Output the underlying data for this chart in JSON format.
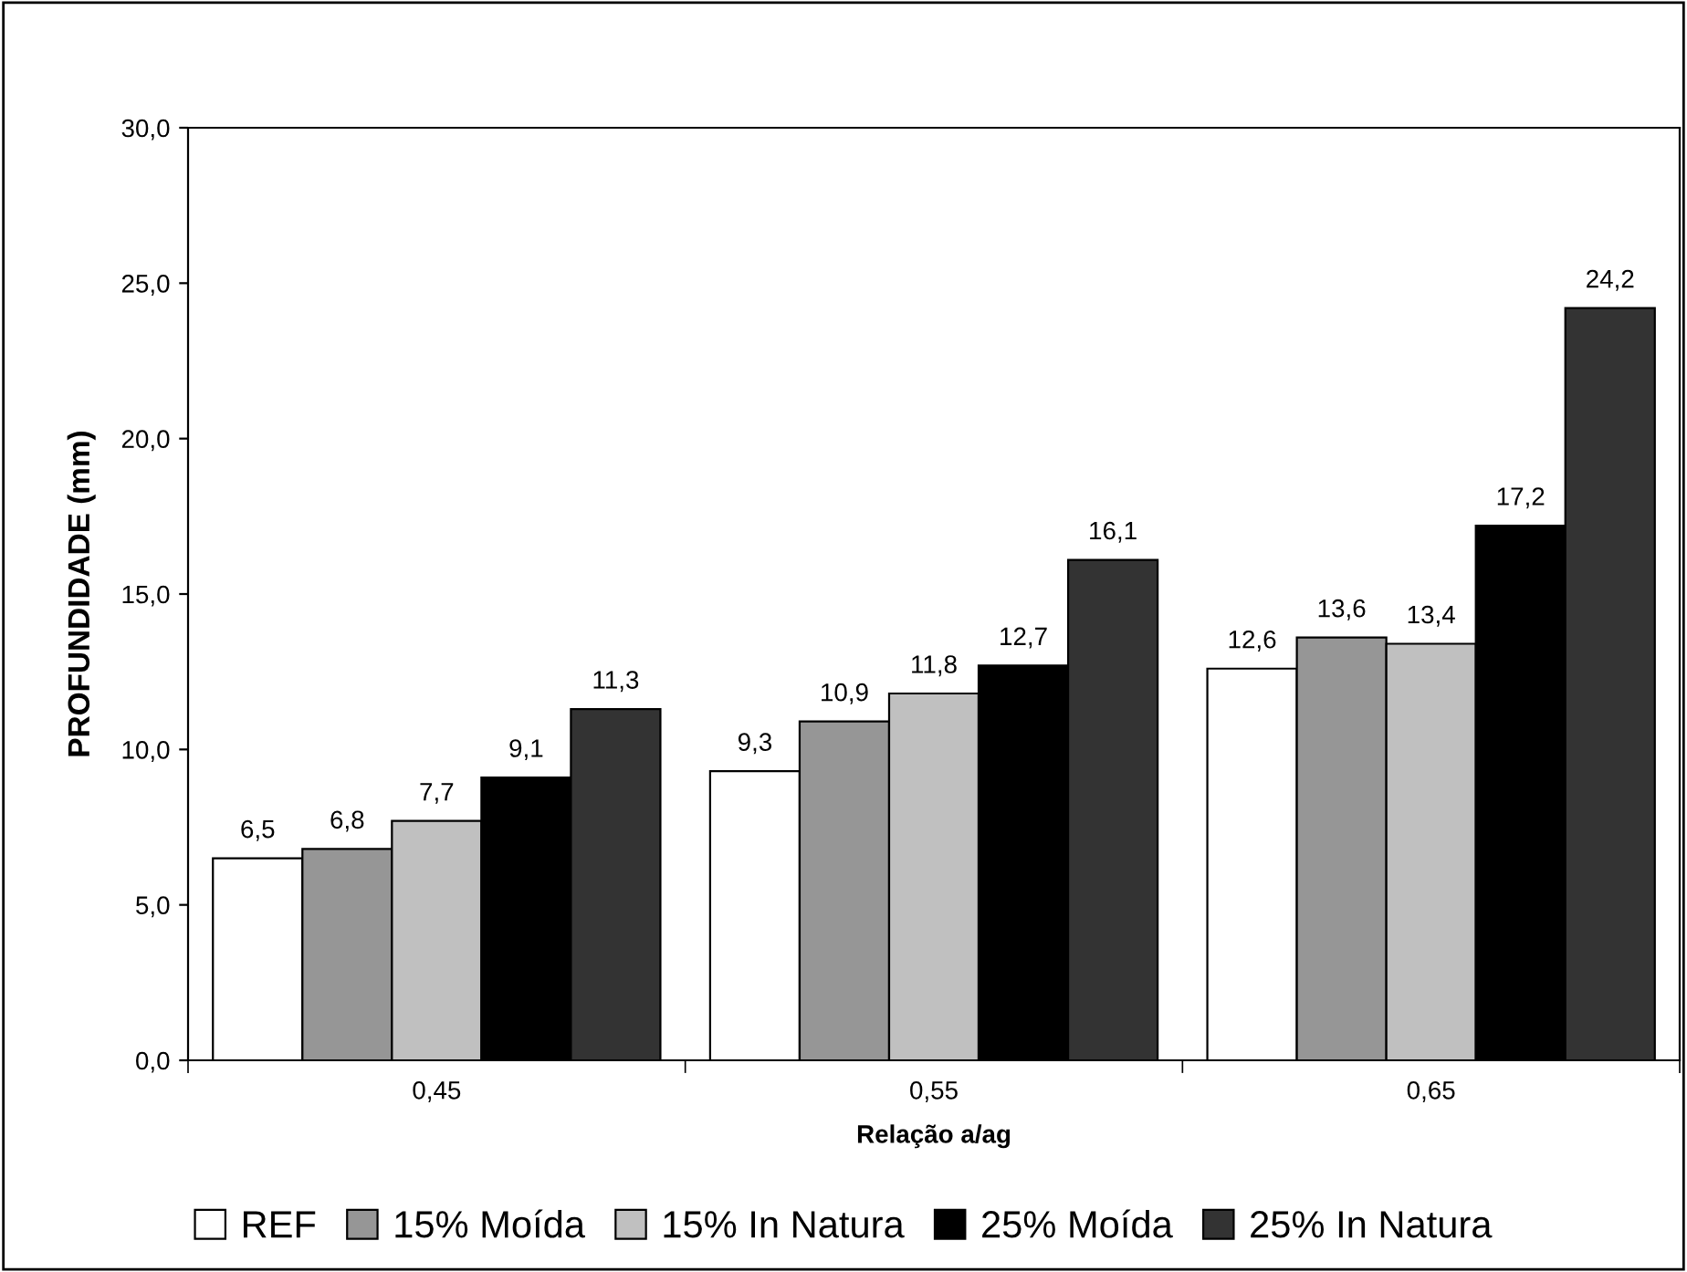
{
  "chart_data": {
    "type": "bar",
    "xlabel": "Relação a/ag",
    "ylabel": "PROFUNDIDADE (mm)",
    "categories": [
      "0,45",
      "0,55",
      "0,65"
    ],
    "series": [
      {
        "name": "REF",
        "color": "#ffffff",
        "values": [
          6.5,
          9.3,
          12.6
        ],
        "value_labels": [
          "6,5",
          "9,3",
          "12,6"
        ]
      },
      {
        "name": "15% Moída",
        "color": "#969696",
        "values": [
          6.8,
          10.9,
          13.6
        ],
        "value_labels": [
          "6,8",
          "10,9",
          "13,6"
        ]
      },
      {
        "name": "15% In Natura",
        "color": "#c0c0c0",
        "values": [
          7.7,
          11.8,
          13.4
        ],
        "value_labels": [
          "7,7",
          "11,8",
          "13,4"
        ]
      },
      {
        "name": "25% Moída",
        "color": "#000000",
        "values": [
          9.1,
          12.7,
          17.2
        ],
        "value_labels": [
          "9,1",
          "12,7",
          "17,2"
        ]
      },
      {
        "name": "25% In Natura",
        "color": "#333333",
        "values": [
          11.3,
          16.1,
          24.2
        ],
        "value_labels": [
          "11,3",
          "16,1",
          "24,2"
        ]
      }
    ],
    "ylim": [
      0,
      30
    ],
    "yticks": [
      {
        "value": 0,
        "label": "0,0"
      },
      {
        "value": 5,
        "label": "5,0"
      },
      {
        "value": 10,
        "label": "10,0"
      },
      {
        "value": 15,
        "label": "15,0"
      },
      {
        "value": 20,
        "label": "20,0"
      },
      {
        "value": 25,
        "label": "25,0"
      },
      {
        "value": 30,
        "label": "30,0"
      }
    ],
    "grid": false,
    "legend": "bottom"
  }
}
